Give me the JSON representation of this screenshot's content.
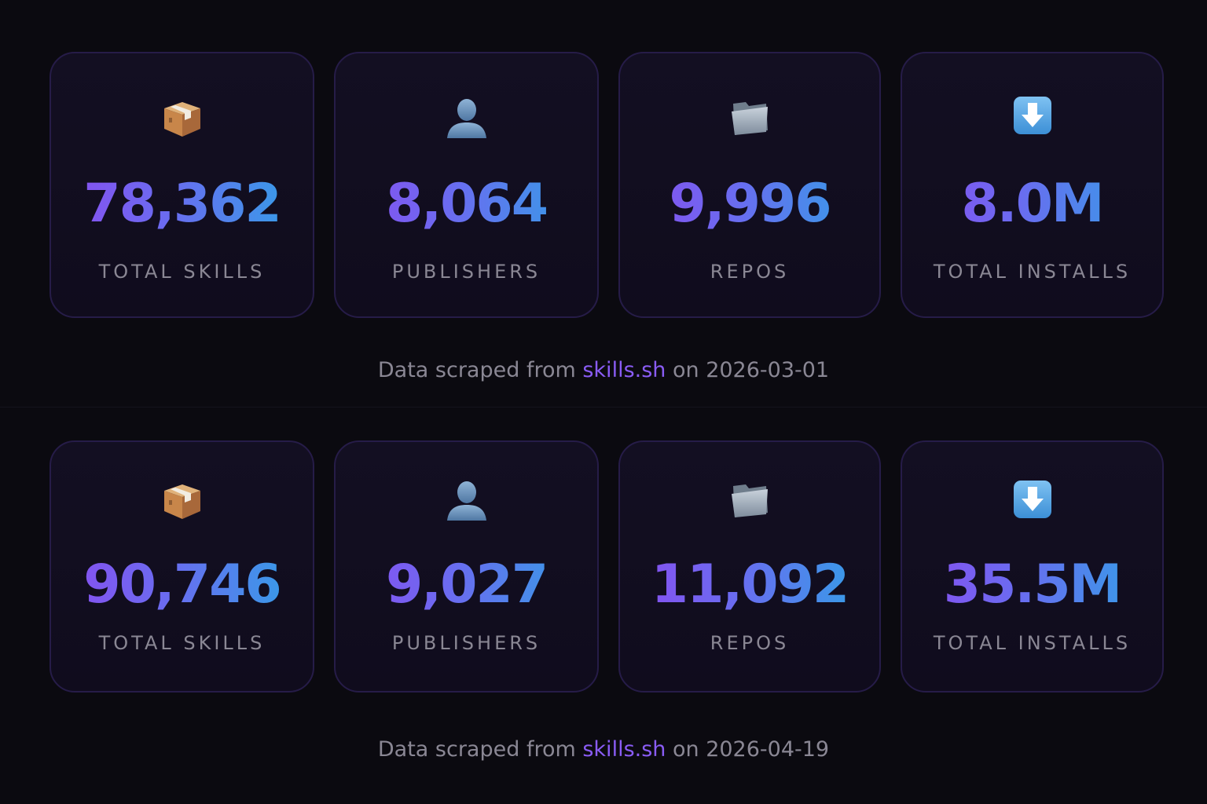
{
  "snapshots": [
    {
      "stats": [
        {
          "icon": "package-icon",
          "value": "78,362",
          "label": "TOTAL SKILLS"
        },
        {
          "icon": "person-icon",
          "value": "8,064",
          "label": "PUBLISHERS"
        },
        {
          "icon": "folder-icon",
          "value": "9,996",
          "label": "REPOS"
        },
        {
          "icon": "download-arrow-icon",
          "value": "8.0M",
          "label": "TOTAL INSTALLS"
        }
      ],
      "footnote": {
        "prefix": "Data scraped from ",
        "link": "skills.sh",
        "suffix": " on 2026-03-01"
      }
    },
    {
      "stats": [
        {
          "icon": "package-icon",
          "value": "90,746",
          "label": "TOTAL SKILLS"
        },
        {
          "icon": "person-icon",
          "value": "9,027",
          "label": "PUBLISHERS"
        },
        {
          "icon": "folder-icon",
          "value": "11,092",
          "label": "REPOS"
        },
        {
          "icon": "download-arrow-icon",
          "value": "35.5M",
          "label": "TOTAL INSTALLS"
        }
      ],
      "footnote": {
        "prefix": "Data scraped from ",
        "link": "skills.sh",
        "suffix": " on 2026-04-19"
      }
    }
  ],
  "colors": {
    "background": "#0b0a10",
    "card_border": "#261c48",
    "gradient_start": "#8b4cf0",
    "gradient_end": "#2ea4e6",
    "label": "#8a8794",
    "link": "#8a5cf5"
  }
}
